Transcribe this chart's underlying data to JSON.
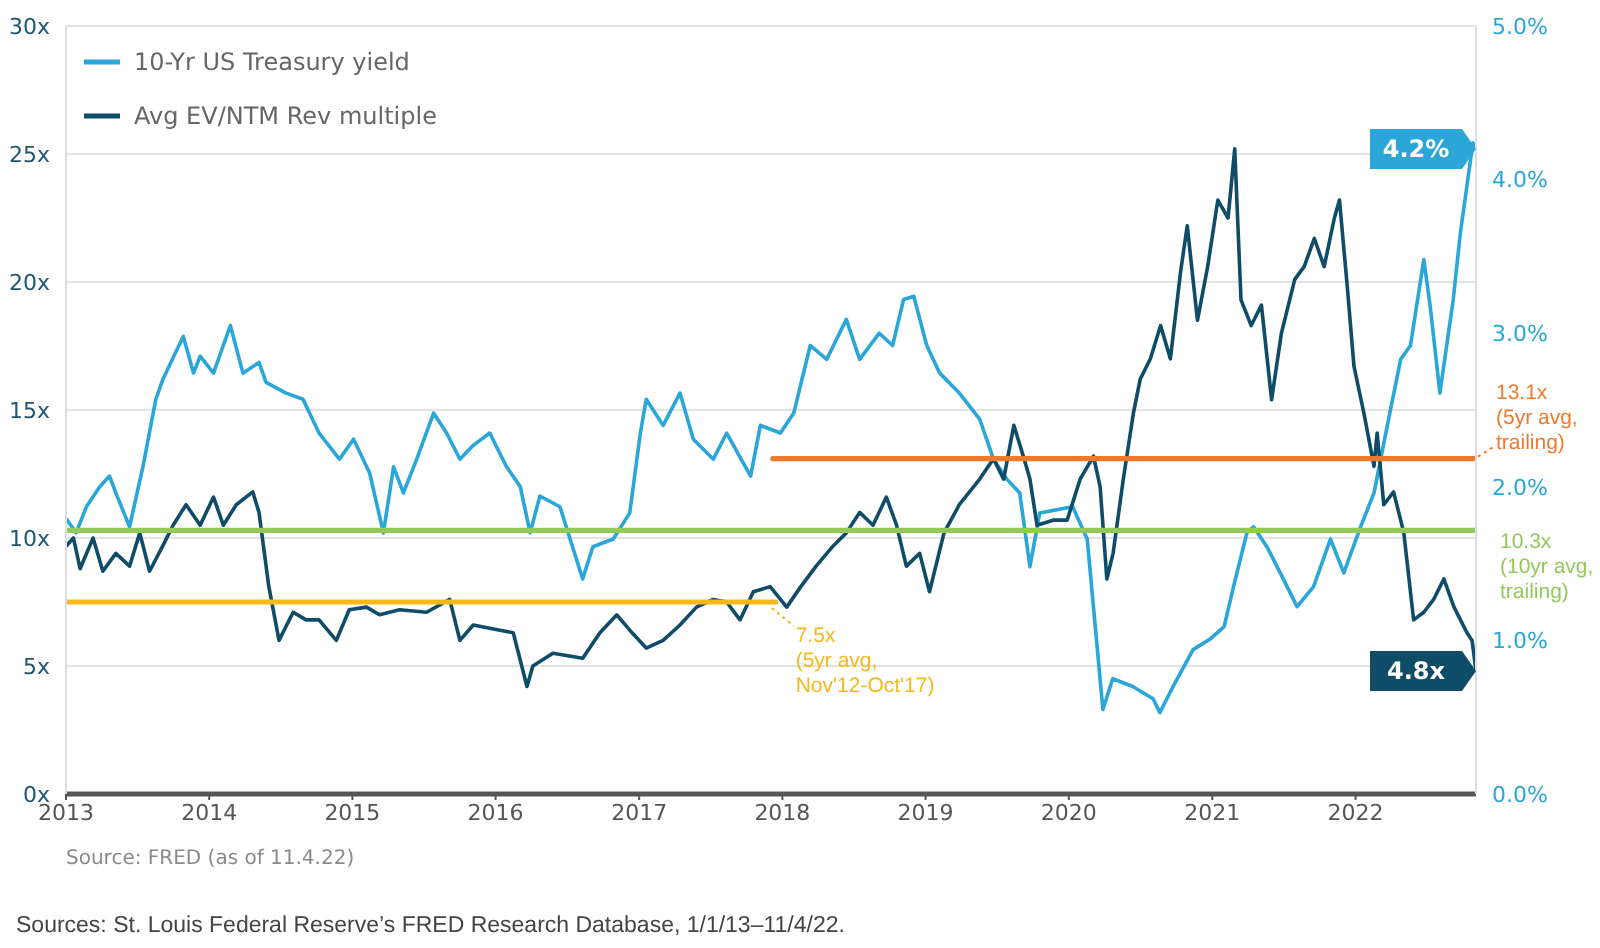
{
  "chart_data": {
    "type": "line",
    "xlim": [
      "2013-01-01",
      "2022-11-04"
    ],
    "xticks": [
      "2013",
      "2014",
      "2015",
      "2016",
      "2017",
      "2018",
      "2019",
      "2020",
      "2021",
      "2022"
    ],
    "ylim": [
      0,
      30
    ],
    "yticks": [
      {
        "value": 0,
        "label": "0x"
      },
      {
        "value": 5,
        "label": "5x"
      },
      {
        "value": 10,
        "label": "10x"
      },
      {
        "value": 15,
        "label": "15x"
      },
      {
        "value": 20,
        "label": "20x"
      },
      {
        "value": 25,
        "label": "25x"
      },
      {
        "value": 30,
        "label": "30x"
      }
    ],
    "y2lim": [
      0,
      5
    ],
    "y2ticks": [
      {
        "value": 0,
        "label": "0.0%"
      },
      {
        "value": 1,
        "label": "1.0%"
      },
      {
        "value": 2,
        "label": "2.0%"
      },
      {
        "value": 3,
        "label": "3.0%"
      },
      {
        "value": 4,
        "label": "4.0%"
      },
      {
        "value": 5,
        "label": "5.0%"
      }
    ],
    "grid": "y",
    "legend": "top left",
    "marker": "none",
    "series": [
      {
        "name": "10-Yr US Treasury yield",
        "color": "#2aa6d9",
        "axis": "y2",
        "x": [
          "2013-01-02",
          "2013-01-27",
          "2013-02-22",
          "2013-03-28",
          "2013-04-22",
          "2013-05-08",
          "2013-06-12",
          "2013-07-16",
          "2013-08-18",
          "2013-09-05",
          "2013-10-27",
          "2013-11-22",
          "2013-12-09",
          "2014-01-12",
          "2014-02-24",
          "2014-03-28",
          "2014-05-08",
          "2014-05-26",
          "2014-07-16",
          "2014-08-28",
          "2014-10-08",
          "2014-11-29",
          "2015-01-04",
          "2015-02-14",
          "2015-03-21",
          "2015-04-16",
          "2015-05-11",
          "2015-06-14",
          "2015-07-27",
          "2015-08-29",
          "2015-10-02",
          "2015-11-05",
          "2015-12-17",
          "2016-01-29",
          "2016-03-04",
          "2016-03-29",
          "2016-04-23",
          "2016-06-13",
          "2016-08-10",
          "2016-09-05",
          "2016-10-27",
          "2016-12-08",
          "2017-01-04",
          "2017-01-19",
          "2017-03-03",
          "2017-04-15",
          "2017-05-19",
          "2017-07-09",
          "2017-08-12",
          "2017-10-12",
          "2017-11-06",
          "2017-12-27",
          "2018-01-30",
          "2018-03-13",
          "2018-04-24",
          "2018-06-13",
          "2018-07-17",
          "2018-09-05",
          "2018-10-09",
          "2018-11-06",
          "2018-12-02",
          "2019-01-04",
          "2019-02-06",
          "2019-03-28",
          "2019-05-19",
          "2019-06-23",
          "2019-07-27",
          "2019-08-29",
          "2019-09-24",
          "2019-10-19",
          "2020-01-11",
          "2020-02-17",
          "2020-03-28",
          "2020-04-22",
          "2020-06-12",
          "2020-08-03",
          "2020-08-20",
          "2020-09-23",
          "2020-11-13",
          "2020-12-27",
          "2021-01-31",
          "2021-02-24",
          "2021-03-30",
          "2021-04-16",
          "2021-05-20",
          "2021-06-23",
          "2021-08-05",
          "2021-09-16",
          "2021-10-29",
          "2021-12-02",
          "2022-01-14",
          "2022-02-17",
          "2022-03-23",
          "2022-04-26",
          "2022-05-21",
          "2022-06-24",
          "2022-07-10",
          "2022-08-04",
          "2022-09-07",
          "2022-09-25",
          "2022-10-12",
          "2022-10-27",
          "2022-11-04"
        ],
        "values": [
          1.79,
          1.7,
          1.87,
          2.0,
          2.07,
          1.96,
          1.74,
          2.13,
          2.57,
          2.7,
          2.98,
          2.74,
          2.85,
          2.74,
          3.05,
          2.74,
          2.81,
          2.68,
          2.61,
          2.57,
          2.35,
          2.18,
          2.31,
          2.09,
          1.7,
          2.13,
          1.96,
          2.18,
          2.48,
          2.35,
          2.18,
          2.27,
          2.35,
          2.13,
          2.0,
          1.7,
          1.94,
          1.87,
          1.4,
          1.61,
          1.66,
          1.83,
          2.35,
          2.57,
          2.4,
          2.61,
          2.31,
          2.18,
          2.35,
          2.07,
          2.4,
          2.35,
          2.48,
          2.92,
          2.83,
          3.09,
          2.83,
          3.0,
          2.92,
          3.22,
          3.24,
          2.92,
          2.74,
          2.61,
          2.44,
          2.18,
          2.05,
          1.96,
          1.48,
          1.83,
          1.87,
          1.66,
          0.55,
          0.75,
          0.7,
          0.62,
          0.53,
          0.7,
          0.94,
          1.01,
          1.09,
          1.35,
          1.7,
          1.74,
          1.61,
          1.44,
          1.22,
          1.35,
          1.66,
          1.44,
          1.74,
          1.96,
          2.4,
          2.83,
          2.92,
          3.48,
          3.18,
          2.61,
          3.22,
          3.65,
          3.96,
          4.24,
          4.2
        ],
        "value_labels": [
          null,
          null,
          null,
          null,
          null,
          null,
          null,
          null,
          null,
          null,
          null,
          null,
          null,
          null,
          null,
          null,
          null,
          null,
          null,
          null,
          null,
          null,
          null,
          null,
          null,
          null,
          null,
          null,
          null,
          null,
          null,
          null,
          null,
          null,
          null,
          null,
          null,
          null,
          null,
          null,
          null,
          null,
          null,
          null,
          null,
          null,
          null,
          null,
          null,
          null,
          null,
          null,
          null,
          null,
          null,
          null,
          null,
          null,
          null,
          null,
          null,
          null,
          null,
          null,
          null,
          null,
          null,
          null,
          null,
          null,
          null,
          null,
          null,
          null,
          null,
          null,
          null,
          null,
          null,
          null,
          null,
          null,
          null,
          null,
          null,
          null,
          null,
          null,
          null,
          null,
          null,
          null,
          null,
          null,
          null,
          null,
          null,
          null,
          null,
          null,
          null,
          null,
          "4.2%"
        ]
      },
      {
        "name": "Avg EV/NTM Rev multiple",
        "color": "#0f4c68",
        "x": [
          "2013-01-02",
          "2013-01-20",
          "2013-02-06",
          "2013-03-11",
          "2013-04-05",
          "2013-05-08",
          "2013-06-12",
          "2013-07-08",
          "2013-08-02",
          "2013-09-05",
          "2013-10-01",
          "2013-11-03",
          "2013-12-09",
          "2014-01-12",
          "2014-02-06",
          "2014-03-11",
          "2014-04-22",
          "2014-05-08",
          "2014-06-02",
          "2014-06-28",
          "2014-08-03",
          "2014-09-05",
          "2014-10-08",
          "2014-11-21",
          "2014-12-24",
          "2015-02-06",
          "2015-03-11",
          "2015-05-01",
          "2015-07-09",
          "2015-09-06",
          "2015-10-02",
          "2015-11-05",
          "2016-01-12",
          "2016-02-15",
          "2016-03-21",
          "2016-04-05",
          "2016-05-26",
          "2016-08-10",
          "2016-09-23",
          "2016-11-05",
          "2016-12-08",
          "2017-01-19",
          "2017-03-03",
          "2017-04-15",
          "2017-05-27",
          "2017-07-09",
          "2017-08-12",
          "2017-09-15",
          "2017-10-19",
          "2017-12-01",
          "2018-01-12",
          "2018-02-17",
          "2018-03-28",
          "2018-05-11",
          "2018-06-13",
          "2018-07-17",
          "2018-08-20",
          "2018-09-23",
          "2018-10-19",
          "2018-11-13",
          "2018-12-17",
          "2019-01-11",
          "2019-02-17",
          "2019-03-28",
          "2019-05-19",
          "2019-06-23",
          "2019-07-19",
          "2019-08-14",
          "2019-09-09",
          "2019-09-24",
          "2019-10-12",
          "2019-11-24",
          "2019-12-28",
          "2020-01-30",
          "2020-03-04",
          "2020-03-21",
          "2020-04-07",
          "2020-04-23",
          "2020-05-19",
          "2020-06-14",
          "2020-07-01",
          "2020-07-27",
          "2020-08-22",
          "2020-09-16",
          "2020-10-12",
          "2020-10-29",
          "2020-11-24",
          "2020-12-20",
          "2021-01-15",
          "2021-02-10",
          "2021-02-27",
          "2021-03-15",
          "2021-04-10",
          "2021-05-06",
          "2021-06-01",
          "2021-06-26",
          "2021-07-30",
          "2021-08-23",
          "2021-09-18",
          "2021-10-13",
          "2021-11-08",
          "2021-11-21",
          "2021-12-11",
          "2021-12-28",
          "2022-01-22",
          "2022-02-17",
          "2022-02-25",
          "2022-03-14",
          "2022-04-08",
          "2022-05-04",
          "2022-05-29",
          "2022-06-24",
          "2022-07-19",
          "2022-08-14",
          "2022-09-09",
          "2022-10-12",
          "2022-10-25",
          "2022-11-04"
        ],
        "values": [
          9.7,
          10.0,
          8.8,
          10.0,
          8.7,
          9.4,
          8.9,
          10.2,
          8.7,
          9.7,
          10.5,
          11.3,
          10.5,
          11.6,
          10.5,
          11.3,
          11.8,
          11.0,
          8.1,
          6.0,
          7.1,
          6.8,
          6.8,
          6.0,
          7.2,
          7.3,
          7.0,
          7.2,
          7.1,
          7.6,
          6.0,
          6.6,
          6.4,
          6.3,
          4.2,
          5.0,
          5.5,
          5.3,
          6.3,
          7.0,
          6.4,
          5.7,
          6.0,
          6.6,
          7.3,
          7.6,
          7.5,
          6.8,
          7.9,
          8.1,
          7.3,
          8.1,
          8.9,
          9.7,
          10.2,
          11.0,
          10.5,
          11.6,
          10.5,
          8.9,
          9.4,
          7.9,
          10.2,
          11.3,
          12.3,
          13.1,
          12.3,
          14.4,
          13.1,
          12.3,
          10.5,
          10.7,
          10.7,
          12.3,
          13.2,
          12.0,
          8.4,
          9.4,
          12.3,
          14.9,
          16.2,
          17.0,
          18.3,
          17.0,
          20.4,
          22.2,
          18.5,
          20.6,
          23.2,
          22.5,
          25.2,
          19.3,
          18.3,
          19.1,
          15.4,
          18.0,
          20.1,
          20.6,
          21.7,
          20.6,
          22.5,
          23.2,
          19.8,
          16.7,
          14.9,
          12.8,
          14.1,
          11.3,
          11.8,
          10.2,
          6.8,
          7.1,
          7.6,
          8.4,
          7.3,
          6.3,
          6.0,
          4.8
        ],
        "value_labels": [
          null,
          null,
          null,
          null,
          null,
          null,
          null,
          null,
          null,
          null,
          null,
          null,
          null,
          null,
          null,
          null,
          null,
          null,
          null,
          null,
          null,
          null,
          null,
          null,
          null,
          null,
          null,
          null,
          null,
          null,
          null,
          null,
          null,
          null,
          null,
          null,
          null,
          null,
          null,
          null,
          null,
          null,
          null,
          null,
          null,
          null,
          null,
          null,
          null,
          null,
          null,
          null,
          null,
          null,
          null,
          null,
          null,
          null,
          null,
          null,
          null,
          null,
          null,
          null,
          null,
          null,
          null,
          null,
          null,
          null,
          null,
          null,
          null,
          null,
          null,
          null,
          null,
          null,
          null,
          null,
          null,
          null,
          null,
          null,
          null,
          null,
          null,
          null,
          null,
          null,
          null,
          null,
          null,
          null,
          null,
          null,
          null,
          null,
          null,
          null,
          null,
          null,
          null,
          null,
          null,
          null,
          null,
          null,
          null,
          null,
          null,
          null,
          null,
          null,
          null,
          null,
          null,
          "4.8x"
        ]
      },
      {
        "color": "#f6b81a",
        "x": [
          "2013-01-01",
          "2017-12-15"
        ],
        "values": [
          7.5,
          7.5
        ]
      },
      {
        "color": "#ee7a2e",
        "x": [
          "2017-12-08",
          "2022-11-04"
        ],
        "values": [
          13.1,
          13.1
        ]
      },
      {
        "color": "#92c95a",
        "x": [
          "2013-01-01",
          "2022-11-04"
        ],
        "values": [
          10.3,
          10.3
        ]
      }
    ],
    "annotations": [
      {
        "text": "7.5x\n(5yr avg,\nNov'12-Oct'17)",
        "x": "2017-12-15",
        "y": 7.5
      },
      {
        "text": "13.1x\n(5yr avg,\ntrailing)",
        "x": "2022-11-04",
        "y": 13.1
      },
      {
        "text": "10.3x\n(10yr avg,\ntrailing)",
        "x": "2022-11-04",
        "y": 10.3
      },
      "Source: FRED (as of 11.4.22)",
      "Sources: St. Louis Federal Reserve’s FRED Research Database, 1/1/13–11/4/22."
    ]
  }
}
